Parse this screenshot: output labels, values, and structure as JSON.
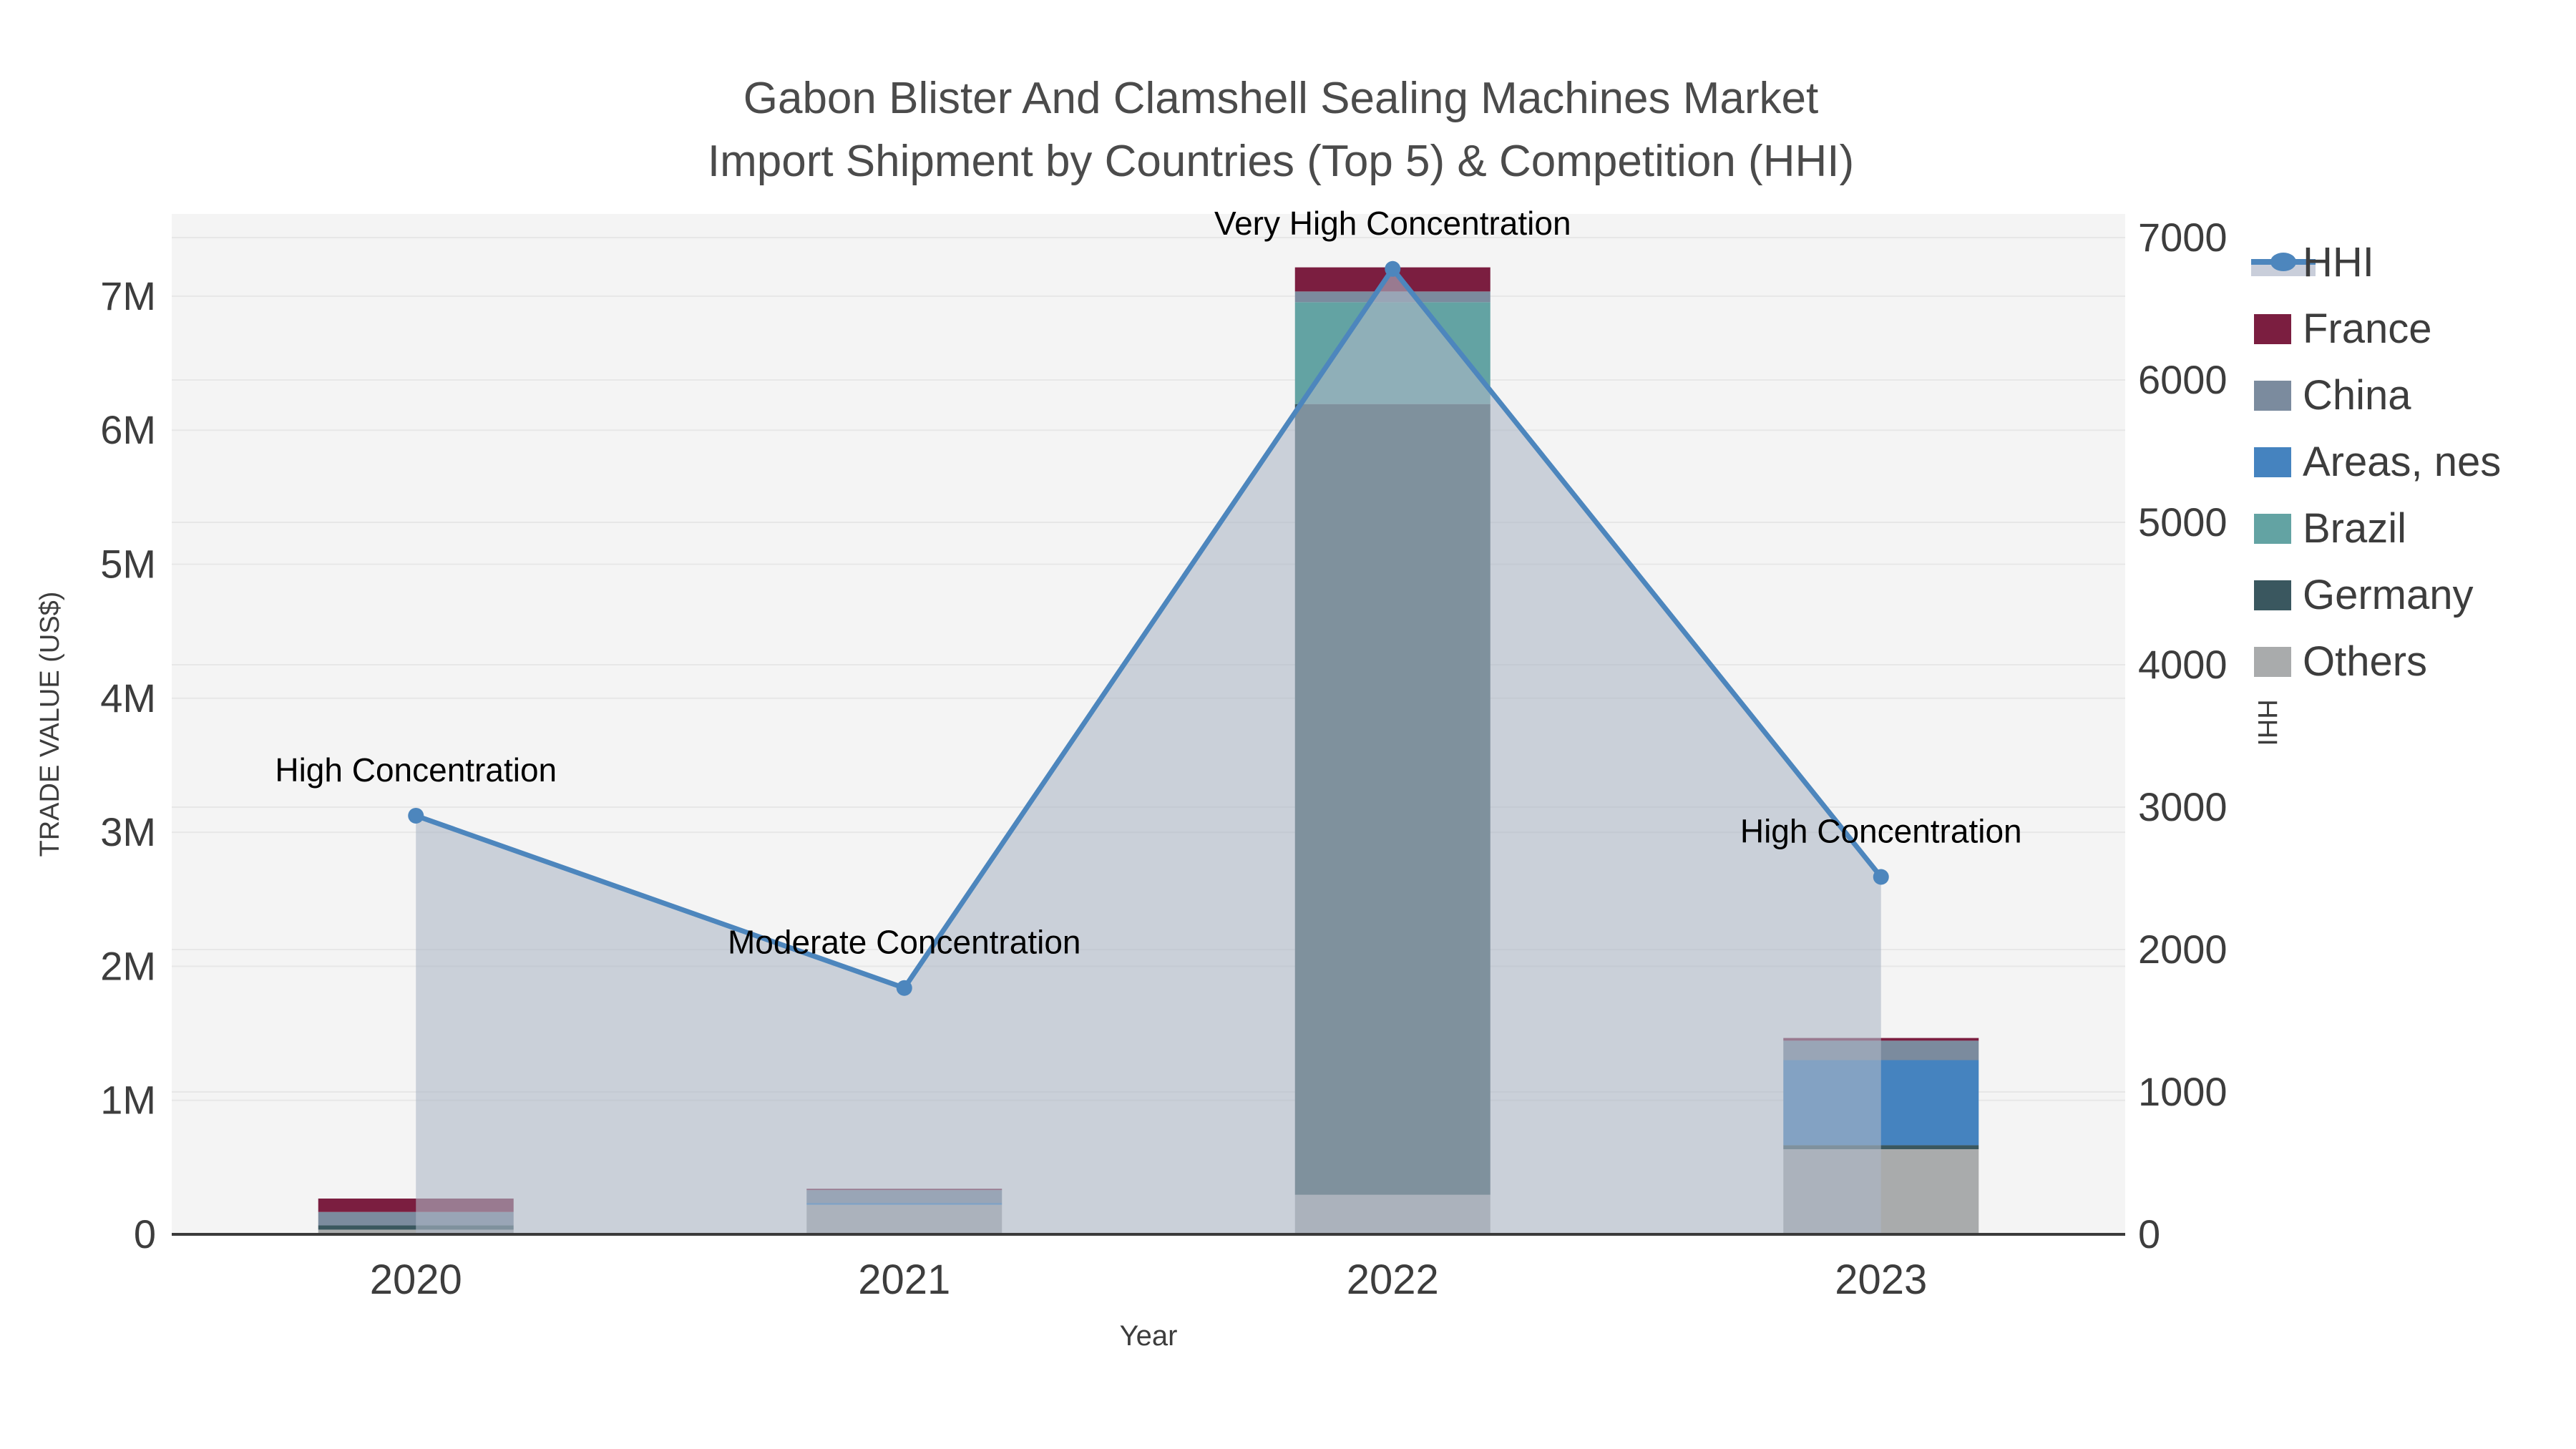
{
  "title": {
    "line1": "Gabon Blister And Clamshell Sealing Machines Market",
    "line2": "Import Shipment by Countries (Top 5) & Competition (HHI)"
  },
  "axes": {
    "x": {
      "title": "Year",
      "ticks": [
        "2020",
        "2021",
        "2022",
        "2023"
      ]
    },
    "y_left": {
      "title": "TRADE VALUE (US$)",
      "ticks": [
        "0",
        "1M",
        "2M",
        "3M",
        "4M",
        "5M",
        "6M",
        "7M"
      ]
    },
    "y_right": {
      "title": "HHI",
      "ticks": [
        "0",
        "1000",
        "2000",
        "3000",
        "4000",
        "5000",
        "6000",
        "7000"
      ]
    }
  },
  "legend": {
    "items": [
      {
        "label": "HHI",
        "type": "line",
        "color": "#4d86bd",
        "band": "#c9ceda"
      },
      {
        "label": "France",
        "type": "box",
        "color": "#7b1e40"
      },
      {
        "label": "China",
        "type": "box",
        "color": "#7b8b9e"
      },
      {
        "label": "Areas, nes",
        "type": "box",
        "color": "#4583bf"
      },
      {
        "label": "Brazil",
        "type": "box",
        "color": "#63a3a3"
      },
      {
        "label": "Germany",
        "type": "box",
        "color": "#3a575f"
      },
      {
        "label": "Others",
        "type": "box",
        "color": "#a9abac"
      }
    ]
  },
  "colors": {
    "plot_bg": "#f4f4f4",
    "grid": "#e7e7e7",
    "axis_line": "#3a3a3a",
    "tick_text": "#3d3d3d",
    "title_text": "#4b4b4b",
    "annotation_text": "#000000",
    "hhi_line": "#4d86bd",
    "hhi_area": "#aeb8c7"
  },
  "chart_data": {
    "type": [
      "bar",
      "line"
    ],
    "categories": [
      "2020",
      "2021",
      "2022",
      "2023"
    ],
    "bar_stack_note": "stacked bars, bottom-to-top order: Others, Germany, Brazil, Areas nes, China, France; values in US$",
    "series": [
      {
        "name": "France",
        "color": "#7b1e40",
        "values": [
          100000,
          10000,
          180000,
          20000
        ]
      },
      {
        "name": "China",
        "color": "#7b8b9e",
        "values": [
          100000,
          95000,
          80000,
          145000
        ]
      },
      {
        "name": "Areas, nes",
        "color": "#4583bf",
        "values": [
          0,
          15000,
          0,
          635000
        ]
      },
      {
        "name": "Brazil",
        "color": "#63a3a3",
        "values": [
          0,
          0,
          760000,
          0
        ]
      },
      {
        "name": "Germany",
        "color": "#3a575f",
        "values": [
          32000,
          0,
          5900000,
          30000
        ]
      },
      {
        "name": "Others",
        "color": "#a9abac",
        "values": [
          35000,
          220000,
          295000,
          635000
        ]
      }
    ],
    "hhi": {
      "name": "HHI",
      "values": [
        2940,
        1730,
        6780,
        2510
      ],
      "annotations": [
        "High Concentration",
        "Moderate Concentration",
        "Very High Concentration",
        "High Concentration"
      ]
    },
    "xlabel": "Year",
    "ylabel_left": "TRADE VALUE (US$)",
    "ylabel_right": "HHI",
    "ylim_left": [
      0,
      7613000
    ],
    "ylim_right": [
      0,
      7166
    ],
    "grid": true,
    "legend_position": "right"
  }
}
